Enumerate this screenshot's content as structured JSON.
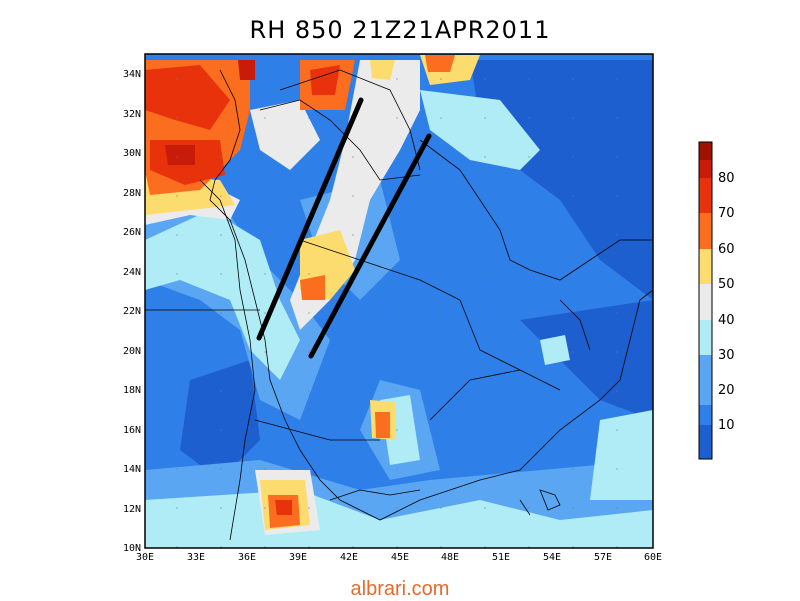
{
  "map": {
    "title": "RH 850 21Z21APR2011",
    "lon_labels": [
      "30E",
      "33E",
      "36E",
      "39E",
      "42E",
      "45E",
      "48E",
      "51E",
      "54E",
      "57E",
      "60E"
    ],
    "lat_labels": [
      "10N",
      "12N",
      "14N",
      "16N",
      "18N",
      "20N",
      "22N",
      "24N",
      "26N",
      "28N",
      "30N",
      "32N",
      "34N"
    ],
    "lon_range": [
      30,
      60
    ],
    "lat_range": [
      10,
      35
    ]
  },
  "colorbar": {
    "labels": [
      "10",
      "20",
      "30",
      "40",
      "50",
      "60",
      "70",
      "80"
    ],
    "colors": [
      "#1e5fcf",
      "#2f7fe8",
      "#5aa6f2",
      "#b0ecf5",
      "#ebebeb",
      "#fcdc6e",
      "#fb6d1f",
      "#e8320c",
      "#c81b0a",
      "#a01200"
    ]
  },
  "watermark": "albrari.com"
}
